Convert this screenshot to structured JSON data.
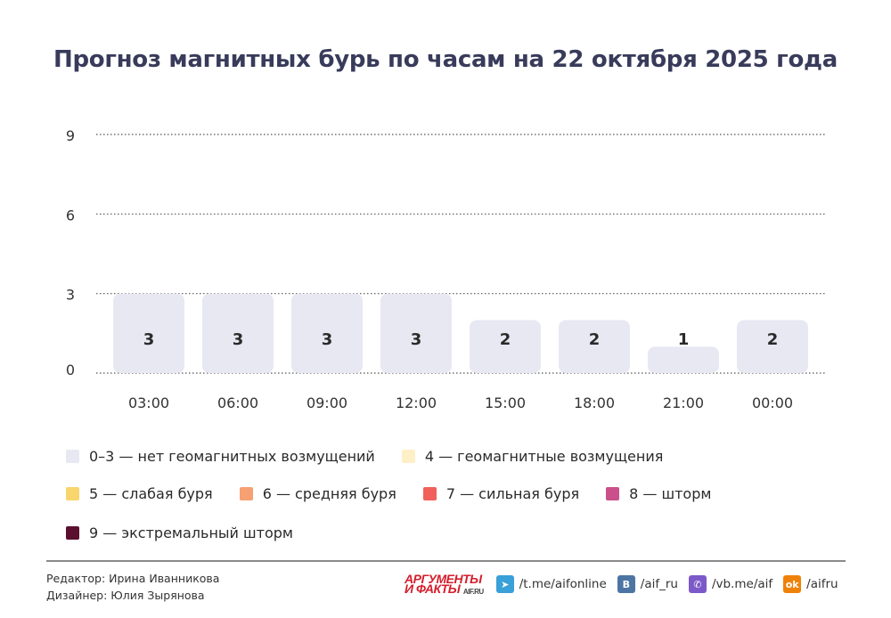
{
  "chart_data": {
    "type": "bar",
    "title": "Прогноз магнитных бурь по часам на 22 октября 2025 года",
    "categories": [
      "03:00",
      "06:00",
      "09:00",
      "12:00",
      "15:00",
      "18:00",
      "21:00",
      "00:00"
    ],
    "values": [
      3,
      3,
      3,
      3,
      2,
      2,
      1,
      2
    ],
    "data_labels": [
      "3",
      "3",
      "3",
      "3",
      "2",
      "2",
      "1",
      "2"
    ],
    "y_ticks": [
      "0",
      "3",
      "6",
      "9"
    ],
    "ylim": [
      0,
      9
    ],
    "grid": true,
    "bar_color": "#e7e8f2",
    "legend": [
      {
        "label": "0–3 — нет геомагнитных возмущений",
        "color": "#e7e8f2"
      },
      {
        "label": "4 — геомагнитные возмущения",
        "color": "#fdf0c6"
      },
      {
        "label": "5 — слабая буря",
        "color": "#f9d56e"
      },
      {
        "label": "6 — средняя буря",
        "color": "#f7a072"
      },
      {
        "label": "7 — сильная буря",
        "color": "#f1605a"
      },
      {
        "label": "8 — шторм",
        "color": "#c9508a"
      },
      {
        "label": "9 — экстремальный шторм",
        "color": "#5a0f2e"
      }
    ]
  },
  "credits": {
    "editor": "Редактор: Ирина Иванникова",
    "designer": "Дизайнер: Юлия Зырянова"
  },
  "footer": {
    "logo_line1": "АРГУМЕНТЫ",
    "logo_line2": "И ФАКТЫ",
    "logo_site": "AIF.RU",
    "links": [
      {
        "icon": "telegram-icon",
        "text": "/t.me/aifonline",
        "color": "#3aa0d8"
      },
      {
        "icon": "vk-icon",
        "text": "/aif_ru",
        "color": "#4c75a3"
      },
      {
        "icon": "viber-icon",
        "text": "/vb.me/aif",
        "color": "#7c59c9"
      },
      {
        "icon": "ok-icon",
        "text": "/aifru",
        "color": "#ee8208"
      }
    ]
  }
}
